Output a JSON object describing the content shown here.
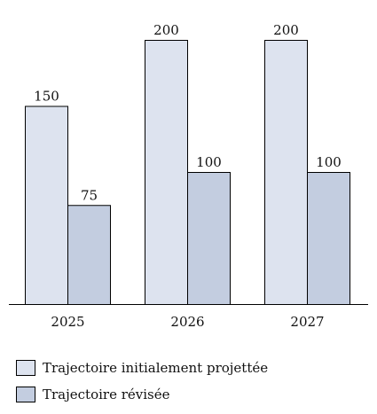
{
  "chart_data": {
    "type": "bar",
    "categories": [
      "2025",
      "2026",
      "2027"
    ],
    "series": [
      {
        "name": "Trajectoire initialement projettée",
        "values": [
          150,
          200,
          200
        ],
        "labels": [
          "150",
          "200",
          "200"
        ],
        "color": "#dde3ef"
      },
      {
        "name": "Trajectoire révisée",
        "values": [
          75,
          100,
          100
        ],
        "labels": [
          "75",
          "100",
          "100"
        ],
        "color": "#c3cde0"
      }
    ],
    "ylim": [
      0,
      200
    ],
    "grid": false,
    "legend": "bottom-left",
    "title": "",
    "xlabel": "",
    "ylabel": ""
  }
}
